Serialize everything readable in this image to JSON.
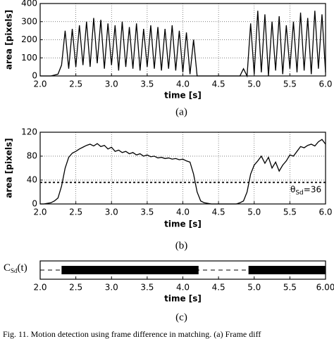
{
  "chart_data": [
    {
      "type": "line",
      "panel_label": "(a)",
      "xlabel": "time [s]",
      "ylabel": "area [pixels]",
      "grid": true,
      "color": "#000000",
      "xlim": [
        2,
        6
      ],
      "ylim": [
        0,
        400
      ],
      "xticks": [
        {
          "value": 2,
          "label": "2.0"
        },
        {
          "value": 2.5,
          "label": "2.5"
        },
        {
          "value": 3,
          "label": "3.0"
        },
        {
          "value": 3.5,
          "label": "3.5"
        },
        {
          "value": 4,
          "label": "4.0"
        },
        {
          "value": 4.5,
          "label": "4.5"
        },
        {
          "value": 5,
          "label": "5.0"
        },
        {
          "value": 5.5,
          "label": "5.5"
        },
        {
          "value": 6,
          "label": "6.0"
        }
      ],
      "yticks": [
        0,
        100,
        200,
        300,
        400
      ],
      "x": [
        2,
        2.05,
        2.1,
        2.15,
        2.2,
        2.25,
        2.3,
        2.35,
        2.4,
        2.45,
        2.5,
        2.55,
        2.6,
        2.65,
        2.7,
        2.75,
        2.8,
        2.85,
        2.9,
        2.95,
        3,
        3.05,
        3.1,
        3.15,
        3.2,
        3.25,
        3.3,
        3.35,
        3.4,
        3.45,
        3.5,
        3.55,
        3.6,
        3.65,
        3.7,
        3.75,
        3.8,
        3.85,
        3.9,
        3.95,
        4,
        4.05,
        4.1,
        4.15,
        4.2,
        4.25,
        4.3,
        4.35,
        4.4,
        4.45,
        4.5,
        4.55,
        4.6,
        4.65,
        4.7,
        4.75,
        4.8,
        4.85,
        4.9,
        4.95,
        5,
        5.05,
        5.1,
        5.15,
        5.2,
        5.25,
        5.3,
        5.35,
        5.4,
        5.45,
        5.5,
        5.55,
        5.6,
        5.65,
        5.7,
        5.75,
        5.8,
        5.85,
        5.9,
        5.95,
        6
      ],
      "values": [
        0,
        0,
        0,
        0,
        5,
        10,
        60,
        250,
        40,
        260,
        50,
        280,
        60,
        300,
        50,
        320,
        70,
        310,
        40,
        290,
        60,
        280,
        30,
        300,
        50,
        270,
        40,
        290,
        30,
        260,
        50,
        280,
        40,
        270,
        30,
        260,
        40,
        280,
        30,
        250,
        20,
        240,
        10,
        200,
        0,
        0,
        0,
        0,
        0,
        0,
        0,
        0,
        0,
        0,
        0,
        0,
        0,
        40,
        0,
        290,
        10,
        360,
        20,
        340,
        0,
        300,
        30,
        330,
        10,
        280,
        40,
        300,
        20,
        350,
        30,
        320,
        10,
        360,
        40,
        340,
        20
      ]
    },
    {
      "type": "line",
      "panel_label": "(b)",
      "xlabel": "time [s]",
      "ylabel": "area [pixels]",
      "grid": true,
      "color": "#000000",
      "xlim": [
        2,
        6
      ],
      "ylim": [
        0,
        120
      ],
      "xticks": [
        {
          "value": 2,
          "label": "2.0"
        },
        {
          "value": 2.5,
          "label": "2.5"
        },
        {
          "value": 3,
          "label": "3.0"
        },
        {
          "value": 3.5,
          "label": "3.5"
        },
        {
          "value": 4,
          "label": "4.0"
        },
        {
          "value": 4.5,
          "label": "4.5"
        },
        {
          "value": 5,
          "label": "5.0"
        },
        {
          "value": 5.5,
          "label": "5.5"
        },
        {
          "value": 6,
          "label": "6.0"
        }
      ],
      "yticks": [
        0,
        40,
        80,
        120
      ],
      "threshold": 36,
      "threshold_label": {
        "main": "θ",
        "sub": "Sd",
        "tail": "=36"
      },
      "x": [
        2,
        2.05,
        2.1,
        2.15,
        2.2,
        2.25,
        2.3,
        2.35,
        2.4,
        2.45,
        2.5,
        2.55,
        2.6,
        2.65,
        2.7,
        2.75,
        2.8,
        2.85,
        2.9,
        2.95,
        3,
        3.05,
        3.1,
        3.15,
        3.2,
        3.25,
        3.3,
        3.35,
        3.4,
        3.45,
        3.5,
        3.55,
        3.6,
        3.65,
        3.7,
        3.75,
        3.8,
        3.85,
        3.9,
        3.95,
        4,
        4.05,
        4.1,
        4.15,
        4.2,
        4.25,
        4.3,
        4.35,
        4.4,
        4.45,
        4.5,
        4.55,
        4.6,
        4.65,
        4.7,
        4.75,
        4.8,
        4.85,
        4.9,
        4.95,
        5,
        5.05,
        5.1,
        5.15,
        5.2,
        5.25,
        5.3,
        5.35,
        5.4,
        5.45,
        5.5,
        5.55,
        5.6,
        5.65,
        5.7,
        5.75,
        5.8,
        5.85,
        5.9,
        5.95,
        6
      ],
      "values": [
        0,
        0,
        1,
        2,
        5,
        10,
        30,
        60,
        78,
        85,
        88,
        92,
        95,
        98,
        100,
        97,
        101,
        96,
        98,
        92,
        95,
        88,
        90,
        86,
        88,
        84,
        86,
        82,
        84,
        80,
        82,
        79,
        80,
        77,
        78,
        76,
        77,
        75,
        76,
        74,
        75,
        72,
        70,
        50,
        20,
        5,
        2,
        1,
        0,
        0,
        0,
        0,
        0,
        0,
        0,
        0,
        2,
        5,
        20,
        50,
        65,
        72,
        80,
        68,
        78,
        60,
        70,
        55,
        65,
        72,
        82,
        80,
        88,
        96,
        94,
        98,
        100,
        97,
        104,
        108,
        100
      ]
    },
    {
      "type": "timeline",
      "panel_label": "(c)",
      "xlabel": "time [s]",
      "ylabel": {
        "main": "C",
        "sub": "Sd",
        "tail": "(t)"
      },
      "color": "#000000",
      "xlim": [
        2,
        6
      ],
      "xticks": [
        {
          "value": 2,
          "label": "2.0"
        },
        {
          "value": 2.5,
          "label": "2.5"
        },
        {
          "value": 3,
          "label": "3.0"
        },
        {
          "value": 3.5,
          "label": "3.5"
        },
        {
          "value": 4,
          "label": "4.0"
        },
        {
          "value": 4.5,
          "label": "4.5"
        },
        {
          "value": 5,
          "label": "5.0"
        },
        {
          "value": 5.5,
          "label": "5.5"
        },
        {
          "value": 6,
          "label": "6.00"
        }
      ],
      "segments": [
        [
          2.3,
          4.22
        ],
        [
          4.92,
          6
        ]
      ]
    }
  ],
  "caption": "Fig. 11.  Motion detection using frame difference in matching. (a) Frame diff"
}
